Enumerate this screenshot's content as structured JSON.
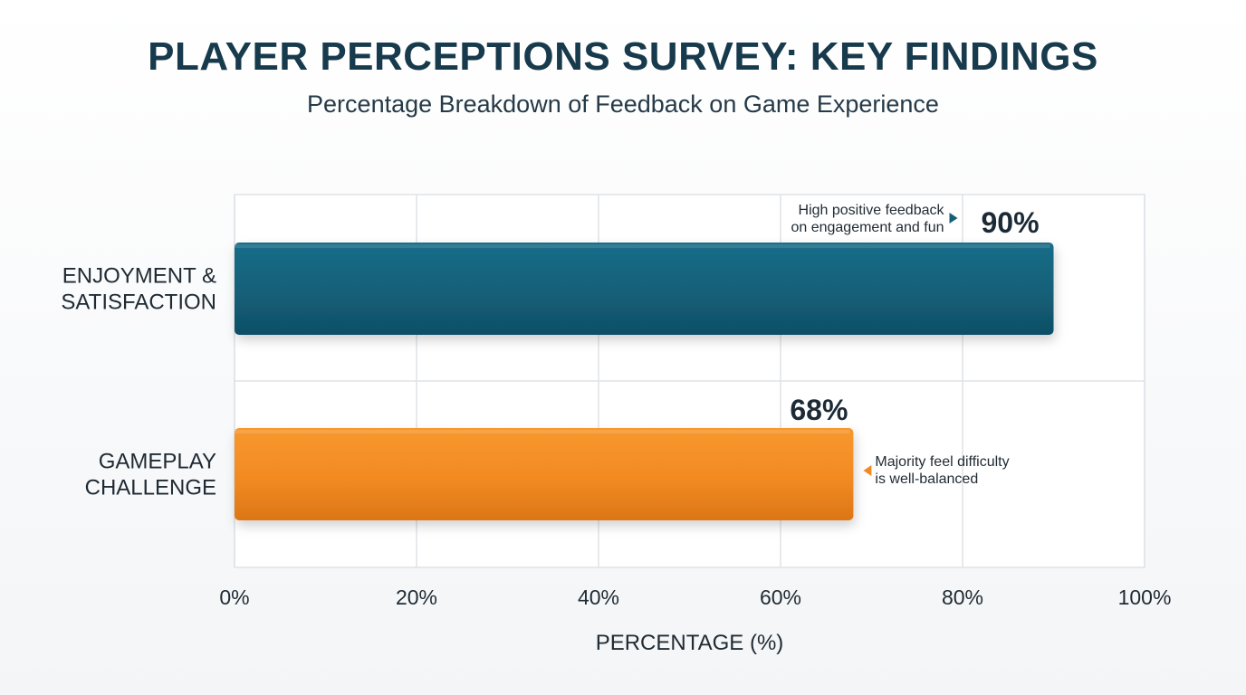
{
  "header": {
    "title": "PLAYER PERCEPTIONS SURVEY: KEY FINDINGS",
    "subtitle": "Percentage Breakdown of Feedback on Game Experience"
  },
  "chart_data": {
    "type": "bar",
    "orientation": "horizontal",
    "title": "PLAYER PERCEPTIONS SURVEY: KEY FINDINGS",
    "subtitle": "Percentage Breakdown of Feedback on Game Experience",
    "xlabel": "PERCENTAGE (%)",
    "ylabel": "",
    "xlim": [
      0,
      100
    ],
    "xticks": [
      "0%",
      "20%",
      "40%",
      "60%",
      "80%",
      "100%"
    ],
    "categories": [
      [
        "ENJOYMENT &",
        "SATISFACTION"
      ],
      [
        "GAMEPLAY",
        "CHALLENGE"
      ]
    ],
    "values": [
      90,
      68
    ],
    "value_labels": [
      "90%",
      "68%"
    ],
    "colors": [
      "#145f78",
      "#f28a22"
    ],
    "annotations": [
      [
        "High positive feedback",
        "on engagement and fun"
      ],
      [
        "Majority feel difficulty",
        "is well-balanced"
      ]
    ],
    "grid": true,
    "legend": "none"
  }
}
